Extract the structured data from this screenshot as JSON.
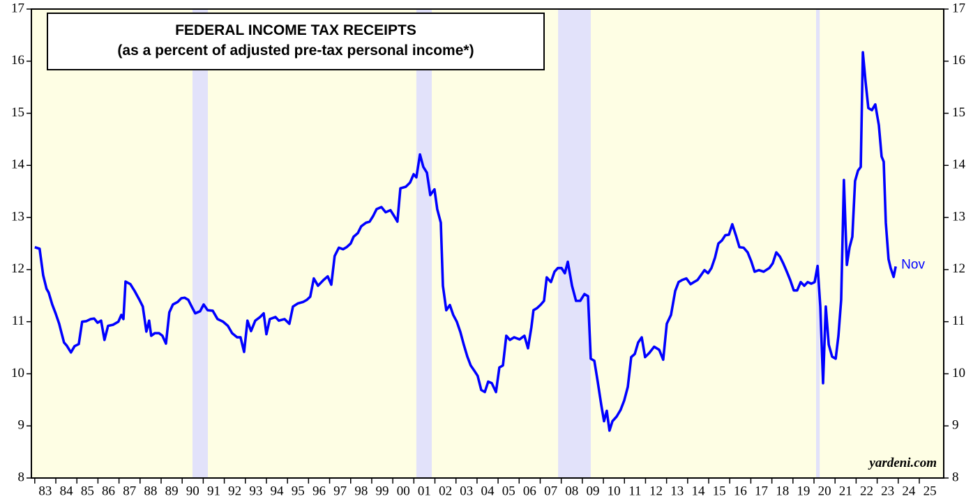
{
  "chart_data": {
    "type": "line",
    "title": "FEDERAL INCOME TAX RECEIPTS",
    "subtitle": "(as a percent of adjusted pre-tax personal income*)",
    "annotation": "Nov",
    "source": "yardeni.com",
    "xlim": [
      1982.84,
      2026.16
    ],
    "ylim": [
      8,
      17
    ],
    "yticks": [
      8,
      9,
      10,
      11,
      12,
      13,
      14,
      15,
      16,
      17
    ],
    "xticks": [
      {
        "value": 1983,
        "label": "83"
      },
      {
        "value": 1984,
        "label": "84"
      },
      {
        "value": 1985,
        "label": "85"
      },
      {
        "value": 1986,
        "label": "86"
      },
      {
        "value": 1987,
        "label": "87"
      },
      {
        "value": 1988,
        "label": "88"
      },
      {
        "value": 1989,
        "label": "89"
      },
      {
        "value": 1990,
        "label": "90"
      },
      {
        "value": 1991,
        "label": "91"
      },
      {
        "value": 1992,
        "label": "92"
      },
      {
        "value": 1993,
        "label": "93"
      },
      {
        "value": 1994,
        "label": "94"
      },
      {
        "value": 1995,
        "label": "95"
      },
      {
        "value": 1996,
        "label": "96"
      },
      {
        "value": 1997,
        "label": "97"
      },
      {
        "value": 1998,
        "label": "98"
      },
      {
        "value": 1999,
        "label": "99"
      },
      {
        "value": 2000,
        "label": "00"
      },
      {
        "value": 2001,
        "label": "01"
      },
      {
        "value": 2002,
        "label": "02"
      },
      {
        "value": 2003,
        "label": "03"
      },
      {
        "value": 2004,
        "label": "04"
      },
      {
        "value": 2005,
        "label": "05"
      },
      {
        "value": 2006,
        "label": "06"
      },
      {
        "value": 2007,
        "label": "07"
      },
      {
        "value": 2008,
        "label": "08"
      },
      {
        "value": 2009,
        "label": "09"
      },
      {
        "value": 2010,
        "label": "10"
      },
      {
        "value": 2011,
        "label": "11"
      },
      {
        "value": 2012,
        "label": "12"
      },
      {
        "value": 2013,
        "label": "13"
      },
      {
        "value": 2014,
        "label": "14"
      },
      {
        "value": 2015,
        "label": "15"
      },
      {
        "value": 2016,
        "label": "16"
      },
      {
        "value": 2017,
        "label": "17"
      },
      {
        "value": 2018,
        "label": "18"
      },
      {
        "value": 2019,
        "label": "19"
      },
      {
        "value": 2020,
        "label": "20"
      },
      {
        "value": 2021,
        "label": "21"
      },
      {
        "value": 2022,
        "label": "22"
      },
      {
        "value": 2023,
        "label": "23"
      },
      {
        "value": 2024,
        "label": "24"
      },
      {
        "value": 2025,
        "label": "25"
      }
    ],
    "recessions": [
      [
        1990.49,
        1991.22
      ],
      [
        2001.12,
        2001.85
      ],
      [
        2007.85,
        2009.4
      ],
      [
        2020.1,
        2020.27
      ]
    ],
    "background_color": "#fefee4",
    "recession_color": "#e2e2fa",
    "color": "#0000ff",
    "x": [
      1983.0,
      1983.23,
      1983.4,
      1983.56,
      1983.66,
      1983.83,
      1983.99,
      1984.16,
      1984.26,
      1984.39,
      1984.52,
      1984.72,
      1984.89,
      1985.09,
      1985.25,
      1985.45,
      1985.65,
      1985.82,
      1985.98,
      1986.15,
      1986.31,
      1986.48,
      1986.71,
      1986.97,
      1987.11,
      1987.21,
      1987.31,
      1987.54,
      1987.74,
      1987.97,
      1988.13,
      1988.3,
      1988.43,
      1988.53,
      1988.7,
      1988.9,
      1989.06,
      1989.23,
      1989.39,
      1989.56,
      1989.79,
      1989.96,
      1990.12,
      1990.29,
      1990.45,
      1990.62,
      1990.85,
      1991.02,
      1991.21,
      1991.45,
      1991.68,
      1991.94,
      1992.17,
      1992.37,
      1992.61,
      1992.77,
      1992.94,
      1993.1,
      1993.27,
      1993.47,
      1993.7,
      1993.87,
      1994.0,
      1994.16,
      1994.43,
      1994.59,
      1994.86,
      1995.09,
      1995.26,
      1995.49,
      1995.75,
      1995.92,
      1996.08,
      1996.25,
      1996.45,
      1996.71,
      1996.91,
      1997.08,
      1997.24,
      1997.44,
      1997.64,
      1997.81,
      1998.0,
      1998.14,
      1998.34,
      1998.5,
      1998.73,
      1998.9,
      1999.07,
      1999.23,
      1999.46,
      1999.66,
      1999.89,
      2000.06,
      2000.22,
      2000.36,
      2000.62,
      2000.82,
      2000.99,
      2001.12,
      2001.29,
      2001.45,
      2001.62,
      2001.78,
      2001.98,
      2002.11,
      2002.28,
      2002.38,
      2002.54,
      2002.71,
      2002.87,
      2003.04,
      2003.21,
      2003.37,
      2003.54,
      2003.7,
      2003.87,
      2004.03,
      2004.2,
      2004.37,
      2004.53,
      2004.7,
      2004.9,
      2005.06,
      2005.23,
      2005.39,
      2005.56,
      2005.76,
      2006.02,
      2006.25,
      2006.42,
      2006.58,
      2006.68,
      2006.85,
      2007.01,
      2007.18,
      2007.31,
      2007.51,
      2007.68,
      2007.84,
      2008.01,
      2008.17,
      2008.31,
      2008.51,
      2008.7,
      2008.9,
      2009.1,
      2009.27,
      2009.4,
      2009.57,
      2009.73,
      2009.9,
      2010.03,
      2010.16,
      2010.29,
      2010.43,
      2010.63,
      2010.82,
      2010.99,
      2011.16,
      2011.32,
      2011.49,
      2011.65,
      2011.82,
      2011.98,
      2012.18,
      2012.41,
      2012.65,
      2012.84,
      2013.01,
      2013.21,
      2013.41,
      2013.57,
      2013.74,
      2013.94,
      2014.14,
      2014.3,
      2014.47,
      2014.63,
      2014.8,
      2014.97,
      2015.13,
      2015.3,
      2015.46,
      2015.63,
      2015.79,
      2015.96,
      2016.12,
      2016.29,
      2016.46,
      2016.66,
      2016.85,
      2017.02,
      2017.18,
      2017.38,
      2017.61,
      2017.88,
      2018.04,
      2018.21,
      2018.38,
      2018.54,
      2018.71,
      2018.87,
      2019.04,
      2019.2,
      2019.37,
      2019.54,
      2019.7,
      2019.87,
      2020.03,
      2020.17,
      2020.3,
      2020.43,
      2020.56,
      2020.7,
      2020.86,
      2021.03,
      2021.16,
      2021.29,
      2021.42,
      2021.56,
      2021.69,
      2021.82,
      2021.95,
      2022.09,
      2022.22,
      2022.32,
      2022.45,
      2022.58,
      2022.75,
      2022.91,
      2023.08,
      2023.21,
      2023.31,
      2023.41,
      2023.54,
      2023.64,
      2023.78,
      2023.88
    ],
    "values": [
      12.43,
      12.4,
      11.89,
      11.63,
      11.56,
      11.33,
      11.16,
      10.96,
      10.8,
      10.6,
      10.54,
      10.41,
      10.53,
      10.57,
      11.0,
      11.01,
      11.05,
      11.06,
      10.98,
      11.02,
      10.65,
      10.92,
      10.94,
      11.0,
      11.13,
      11.05,
      11.77,
      11.72,
      11.59,
      11.42,
      11.29,
      10.81,
      11.02,
      10.73,
      10.78,
      10.78,
      10.73,
      10.58,
      11.18,
      11.33,
      11.38,
      11.45,
      11.46,
      11.42,
      11.29,
      11.16,
      11.2,
      11.33,
      11.22,
      11.21,
      11.05,
      11.0,
      10.92,
      10.78,
      10.7,
      10.7,
      10.42,
      11.02,
      10.82,
      11.02,
      11.09,
      11.16,
      10.76,
      11.05,
      11.09,
      11.02,
      11.05,
      10.96,
      11.29,
      11.35,
      11.38,
      11.42,
      11.48,
      11.83,
      11.69,
      11.8,
      11.87,
      11.71,
      12.26,
      12.42,
      12.39,
      12.43,
      12.5,
      12.63,
      12.7,
      12.83,
      12.9,
      12.92,
      13.03,
      13.16,
      13.2,
      13.1,
      13.14,
      13.03,
      12.92,
      13.56,
      13.59,
      13.67,
      13.83,
      13.77,
      14.21,
      13.97,
      13.86,
      13.43,
      13.54,
      13.16,
      12.9,
      11.69,
      11.22,
      11.32,
      11.13,
      11.0,
      10.8,
      10.56,
      10.33,
      10.16,
      10.06,
      9.96,
      9.69,
      9.65,
      9.85,
      9.82,
      9.65,
      10.12,
      10.16,
      10.73,
      10.65,
      10.7,
      10.66,
      10.73,
      10.49,
      10.89,
      11.22,
      11.26,
      11.32,
      11.4,
      11.85,
      11.76,
      11.96,
      12.03,
      12.03,
      11.93,
      12.15,
      11.69,
      11.4,
      11.4,
      11.53,
      11.49,
      10.29,
      10.25,
      9.85,
      9.4,
      9.09,
      9.29,
      8.91,
      9.09,
      9.18,
      9.31,
      9.49,
      9.75,
      10.32,
      10.38,
      10.6,
      10.7,
      10.32,
      10.4,
      10.52,
      10.46,
      10.27,
      10.96,
      11.13,
      11.59,
      11.76,
      11.8,
      11.83,
      11.72,
      11.76,
      11.8,
      11.89,
      11.99,
      11.93,
      12.03,
      12.23,
      12.5,
      12.56,
      12.66,
      12.67,
      12.87,
      12.66,
      12.43,
      12.42,
      12.33,
      12.16,
      11.96,
      11.99,
      11.96,
      12.03,
      12.12,
      12.33,
      12.25,
      12.12,
      11.96,
      11.8,
      11.6,
      11.6,
      11.76,
      11.69,
      11.76,
      11.73,
      11.76,
      12.07,
      11.29,
      9.82,
      11.29,
      10.56,
      10.33,
      10.29,
      10.73,
      11.42,
      13.72,
      12.09,
      12.43,
      12.63,
      13.7,
      13.9,
      13.97,
      16.17,
      15.6,
      15.1,
      15.06,
      15.17,
      14.77,
      14.17,
      14.07,
      12.9,
      12.2,
      12.03,
      11.86,
      12.06
    ]
  }
}
